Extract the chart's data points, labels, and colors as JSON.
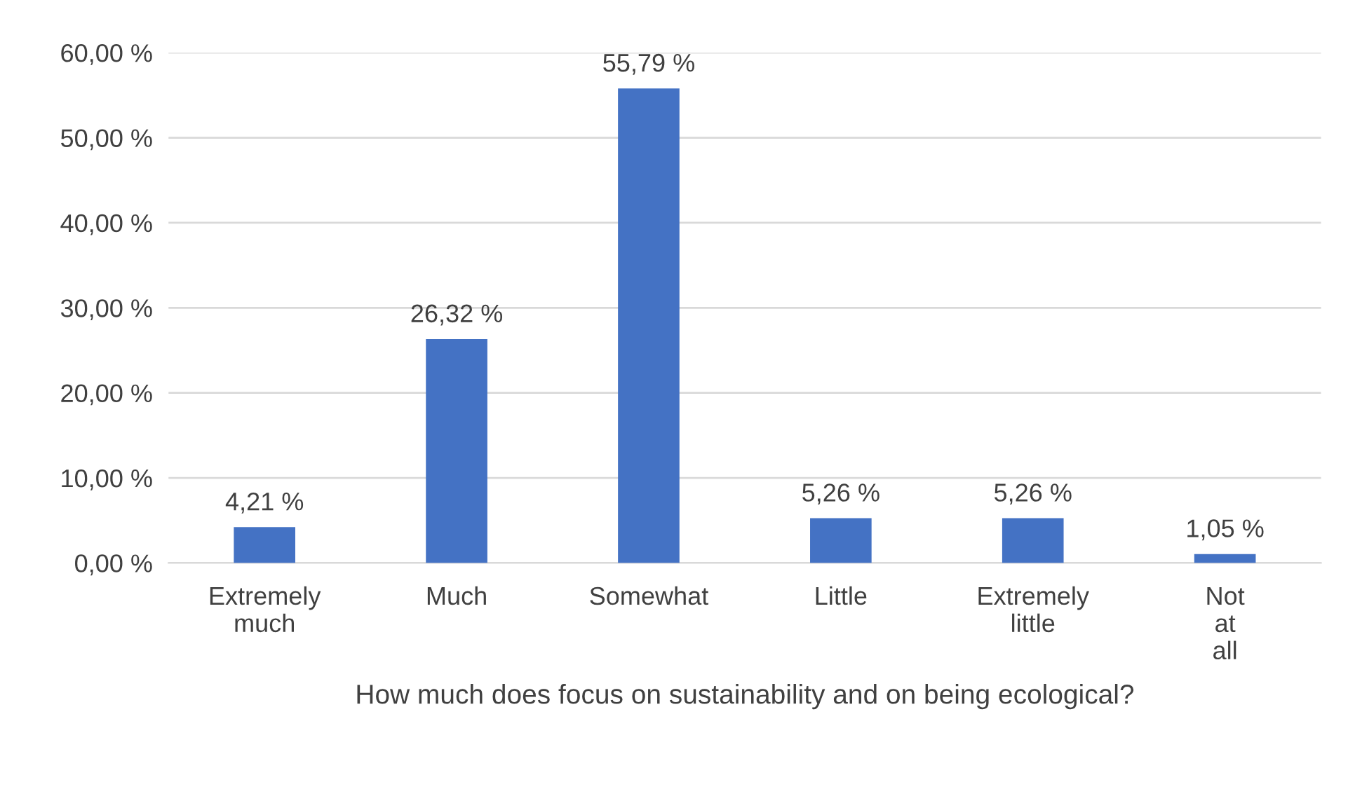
{
  "chart_data": {
    "type": "bar",
    "categories": [
      "Extremely much",
      "Much",
      "Somewhat",
      "Little",
      "Extremely little",
      "Not at all"
    ],
    "values": [
      4.21,
      26.32,
      55.79,
      5.26,
      5.26,
      1.05
    ],
    "value_labels": [
      "4,21 %",
      "26,32 %",
      "55,79 %",
      "5,26 %",
      "5,26 %",
      "1,05 %"
    ],
    "color": "#4472c4",
    "xlabel": "How much does focus on sustainability and on being ecological?",
    "ylim": [
      0,
      60
    ],
    "yticks": [
      {
        "value": 0,
        "label": "0,00 %"
      },
      {
        "value": 10,
        "label": "10,00 %"
      },
      {
        "value": 20,
        "label": "20,00 %"
      },
      {
        "value": 30,
        "label": "30,00 %"
      },
      {
        "value": 40,
        "label": "40,00 %"
      },
      {
        "value": 50,
        "label": "50,00 %"
      },
      {
        "value": 60,
        "label": "60,00 %"
      }
    ],
    "grid": "y"
  }
}
